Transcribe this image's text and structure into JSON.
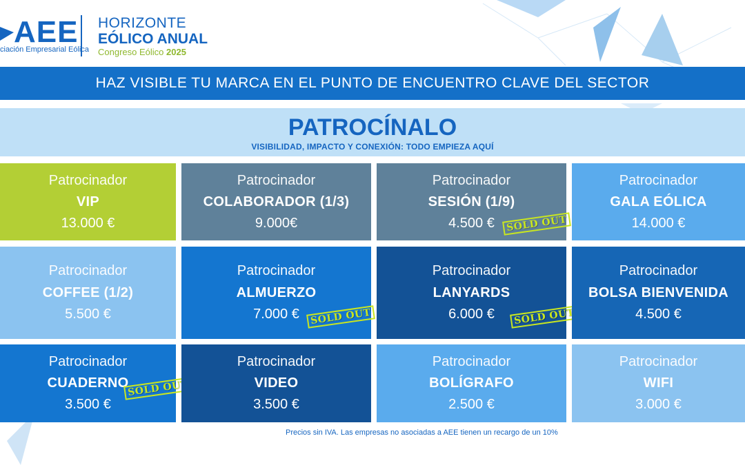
{
  "header": {
    "logo_letters": "AEE",
    "logo_subtitle": "ciación Empresarial Eólica",
    "event_line1": "HORIZONTE",
    "event_line2": "EÓLICO ANUAL",
    "event_line3_prefix": "Congreso Eólico ",
    "event_line3_year": "2025"
  },
  "banner": {
    "text": "HAZ VISIBLE TU MARCA EN EL PUNTO DE ENCUENTRO CLAVE DEL SECTOR"
  },
  "hero": {
    "title": "PATROCÍNALO",
    "subtitle": "VISIBILIDAD, IMPACTO Y CONEXIÓN: TODO EMPIEZA AQUÍ"
  },
  "sold_out_label": "SOLD OUT",
  "cards": [
    {
      "label": "Patrocinador",
      "name": "VIP",
      "price": "13.000 €",
      "color": "#b3cf35"
    },
    {
      "label": "Patrocinador",
      "name": "COLABORADOR (1/3)",
      "price": "9.000€",
      "color": "#5f819a"
    },
    {
      "label": "Patrocinador",
      "name": "SESIÓN (1/9)",
      "price": "4.500 €",
      "color": "#5f819a"
    },
    {
      "label": "Patrocinador",
      "name": "GALA EÓLICA",
      "price": "14.000 €",
      "color": "#5aabed"
    },
    {
      "label": "Patrocinador",
      "name": "COFFEE (1/2)",
      "price": "5.500 €",
      "color": "#8bc3f0"
    },
    {
      "label": "Patrocinador",
      "name": "ALMUERZO",
      "price": "7.000 €",
      "color": "#1476d0"
    },
    {
      "label": "Patrocinador",
      "name": "LANYARDS",
      "price": "6.000 €",
      "color": "#135296"
    },
    {
      "label": "Patrocinador",
      "name": "BOLSA BIENVENIDA",
      "price": "4.500 €",
      "color": "#1666b5"
    },
    {
      "label": "Patrocinador",
      "name": "CUADERNO",
      "price": "3.500 €",
      "color": "#1476d0"
    },
    {
      "label": "Patrocinador",
      "name": "VIDEO",
      "price": "3.500 €",
      "color": "#135296"
    },
    {
      "label": "Patrocinador",
      "name": "BOLÍGRAFO",
      "price": "2.500 €",
      "color": "#5aabed"
    },
    {
      "label": "Patrocinador",
      "name": "WIFI",
      "price": "3.000 €",
      "color": "#8bc3f0"
    }
  ],
  "footnote": "Precios sin IVA. Las empresas no asociadas a AEE tienen un recargo de un 10%"
}
